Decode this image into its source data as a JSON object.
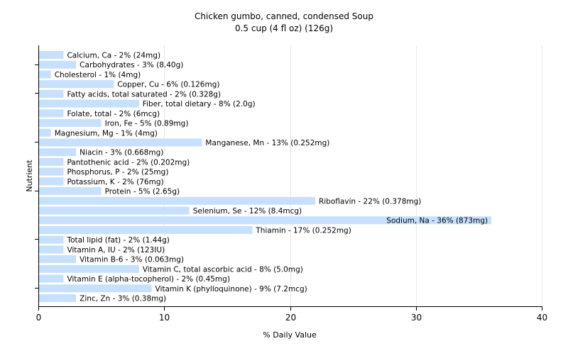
{
  "chart_data": {
    "type": "bar",
    "orientation": "horizontal",
    "title": "Chicken gumbo, canned, condensed Soup",
    "subtitle": "0.5 cup (4 fl oz) (126g)",
    "xlabel": "% Daily Value",
    "ylabel": "Nutrient",
    "xlim": [
      0,
      40
    ],
    "xticks": [
      "0",
      "10",
      "20",
      "30",
      "40"
    ],
    "grid": true,
    "bar_color": "#c6e0fd",
    "categories": [
      "Calcium, Ca",
      "Carbohydrates",
      "Cholesterol",
      "Copper, Cu",
      "Fatty acids, total saturated",
      "Fiber, total dietary",
      "Folate, total",
      "Iron, Fe",
      "Magnesium, Mg",
      "Manganese, Mn",
      "Niacin",
      "Pantothenic acid",
      "Phosphorus, P",
      "Potassium, K",
      "Protein",
      "Riboflavin",
      "Selenium, Se",
      "Sodium, Na",
      "Thiamin",
      "Total lipid (fat)",
      "Vitamin A, IU",
      "Vitamin B-6",
      "Vitamin C, total ascorbic acid",
      "Vitamin E (alpha-tocopherol)",
      "Vitamin K (phylloquinone)",
      "Zinc, Zn"
    ],
    "values": [
      2,
      3,
      1,
      6,
      2,
      8,
      2,
      5,
      1,
      13,
      3,
      2,
      2,
      2,
      5,
      22,
      12,
      36,
      17,
      2,
      2,
      3,
      8,
      2,
      9,
      3
    ],
    "labels": [
      "Calcium, Ca - 2% (24mg)",
      "Carbohydrates - 3% (8.40g)",
      "Cholesterol - 1% (4mg)",
      "Copper, Cu - 6% (0.126mg)",
      "Fatty acids, total saturated - 2% (0.328g)",
      "Fiber, total dietary - 8% (2.0g)",
      "Folate, total - 2% (6mcg)",
      "Iron, Fe - 5% (0.89mg)",
      "Magnesium, Mg - 1% (4mg)",
      "Manganese, Mn - 13% (0.252mg)",
      "Niacin - 3% (0.668mg)",
      "Pantothenic acid - 2% (0.202mg)",
      "Phosphorus, P - 2% (25mg)",
      "Potassium, K - 2% (76mg)",
      "Protein - 5% (2.65g)",
      "Riboflavin - 22% (0.378mg)",
      "Selenium, Se - 12% (8.4mcg)",
      "Sodium, Na - 36% (873mg)",
      "Thiamin - 17% (0.252mg)",
      "Total lipid (fat) - 2% (1.44g)",
      "Vitamin A, IU - 2% (123IU)",
      "Vitamin B-6 - 3% (0.063mg)",
      "Vitamin C, total ascorbic acid - 8% (5.0mg)",
      "Vitamin E (alpha-tocopherol) - 2% (0.45mg)",
      "Vitamin K (phylloquinone) - 9% (7.2mcg)",
      "Zinc, Zn - 3% (0.38mg)"
    ]
  }
}
